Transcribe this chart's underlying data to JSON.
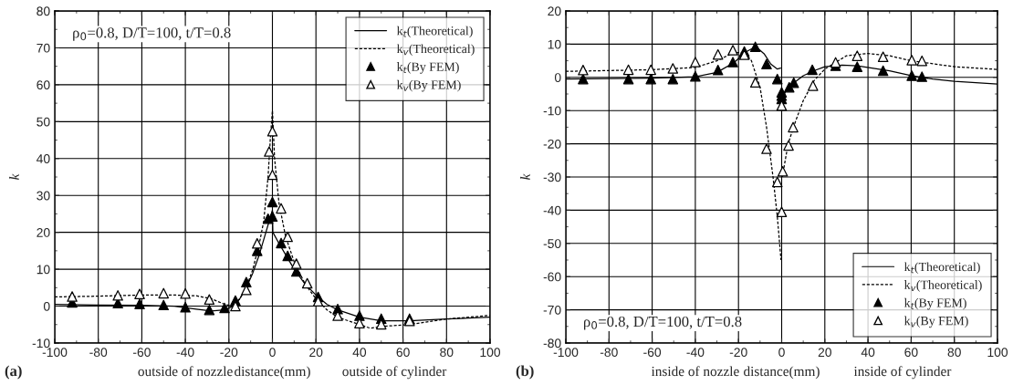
{
  "chart_data": [
    {
      "type": "line",
      "xlabel": "distance(mm)",
      "ylabel": "k",
      "xlim": [
        -100,
        100
      ],
      "ylim": [
        -10,
        80
      ],
      "xticks": [
        -100,
        -80,
        -60,
        -40,
        -20,
        0,
        20,
        40,
        60,
        80,
        100
      ],
      "yticks": [
        -10,
        0,
        10,
        20,
        30,
        40,
        50,
        60,
        70,
        80
      ],
      "grid": true,
      "legend": "top right",
      "annotations": [
        "ρ$_{0}$=0.8, D/T=100, t/T=0.8",
        "(a)",
        "outside of nozzle",
        "outside of cylinder"
      ],
      "series": [
        {
          "name": "k$_{t}$(Theoretical)",
          "line_style": "solid",
          "color": "#000000",
          "x": [
            -100,
            -80,
            -60,
            -45,
            -35,
            -28,
            -22,
            -18,
            -15,
            -12,
            -9,
            -6,
            -3,
            -1,
            0,
            0.2,
            3,
            6,
            10,
            15,
            20,
            25,
            30,
            40,
            50,
            63,
            80,
            100
          ],
          "values": [
            0.5,
            0.3,
            0.2,
            0,
            -0.8,
            -1.3,
            -1.0,
            0,
            2,
            5,
            9,
            14,
            20,
            24,
            26,
            20,
            17,
            14,
            10,
            6,
            3,
            0.5,
            -1,
            -3,
            -4,
            -4,
            -3.5,
            -3
          ]
        },
        {
          "name": "k$_{v}$(Theoretical)",
          "line_style": "dashed",
          "color": "#000000",
          "x": [
            -100,
            -80,
            -60,
            -45,
            -35,
            -28,
            -22,
            -18,
            -15,
            -12,
            -9,
            -6,
            -4,
            -2,
            -1,
            0,
            1,
            3,
            6,
            10,
            15,
            20,
            25,
            30,
            40,
            45,
            50,
            63,
            80,
            100
          ],
          "values": [
            2.5,
            2.7,
            3,
            3,
            2.8,
            2,
            0.5,
            0,
            2,
            5,
            10,
            17,
            23,
            35,
            45,
            53,
            40,
            28,
            19,
            12,
            6,
            2,
            -1,
            -3,
            -5,
            -6,
            -5.5,
            -5,
            -3.5,
            -2.5
          ]
        },
        {
          "name": "k$_{t}$(By FEM)",
          "type": "scatter",
          "marker": "triangle",
          "color": "#000000",
          "x": [
            -92,
            -71,
            -61,
            -50,
            -40,
            -29,
            -22,
            -17,
            -12,
            -7,
            -2,
            0,
            0,
            4,
            7,
            11,
            21,
            30,
            40,
            50,
            63
          ],
          "values": [
            1.0,
            0.8,
            0.6,
            0.3,
            -0.3,
            -1,
            -0.5,
            1.5,
            6.5,
            15,
            23.7,
            24.3,
            28.2,
            17.1,
            13.6,
            9.4,
            2.5,
            -0.8,
            -2.6,
            -3.4,
            -3.4
          ]
        },
        {
          "name": "k$_{v}$(By FEM)",
          "type": "scatter",
          "marker": "triangle",
          "color": "#ffffff",
          "x": [
            -92,
            -71,
            -61,
            -50,
            -40,
            -29,
            -17,
            -12,
            -7,
            -1.5,
            0,
            0,
            4,
            7,
            11,
            16,
            21,
            30,
            40,
            50,
            63
          ],
          "values": [
            2.6,
            2.9,
            3.3,
            3.5,
            3.4,
            1.8,
            0,
            4.4,
            17,
            41.9,
            47.4,
            35.6,
            26.5,
            18.8,
            11.5,
            6.2,
            1.3,
            -2.6,
            -4.6,
            -4.9,
            -4
          ]
        }
      ]
    },
    {
      "type": "line",
      "xlabel": "distance(mm)",
      "ylabel": "k",
      "xlim": [
        -100,
        100
      ],
      "ylim": [
        -80,
        20
      ],
      "xticks": [
        -100,
        -80,
        -60,
        -40,
        -20,
        0,
        20,
        40,
        60,
        80,
        100
      ],
      "yticks": [
        -80,
        -70,
        -60,
        -50,
        -40,
        -30,
        -20,
        -10,
        0,
        10,
        20
      ],
      "grid": true,
      "legend": "bottom right",
      "annotations": [
        "ρ$_{0}$=0.8, D/T=100, t/T=0.8",
        "(b)",
        "inside of nozzle",
        "inside of cylinder"
      ],
      "series": [
        {
          "name": "k$_{t}$(Theoretical)",
          "line_style": "solid",
          "color": "#000000",
          "x": [
            -100,
            -60,
            -40,
            -30,
            -22,
            -17,
            -12,
            -8,
            -5,
            -2,
            -0.5,
            -0.3,
            0,
            2,
            5,
            10,
            15,
            20,
            28,
            35,
            50,
            60,
            70,
            80,
            100
          ],
          "values": [
            -0.5,
            -0.2,
            0.2,
            1.5,
            4.5,
            7.5,
            9.3,
            7,
            4,
            2.5,
            2.8,
            null,
            -6.5,
            -4,
            -2,
            0.5,
            2,
            3.2,
            3.7,
            3.5,
            2,
            0.5,
            -0.5,
            -1.2,
            -2
          ]
        },
        {
          "name": "k$_{v}$(Theoretical)",
          "line_style": "dashed",
          "color": "#000000",
          "x": [
            -100,
            -60,
            -40,
            -30,
            -22,
            -17,
            -14,
            -10,
            -7,
            -4,
            -2,
            -0.3,
            0,
            0.3,
            3,
            6,
            10,
            15,
            20,
            25,
            30,
            40,
            50,
            60,
            80,
            100
          ],
          "values": [
            1.8,
            2.3,
            3,
            5,
            7.5,
            7.5,
            5,
            -3,
            -15,
            -30,
            -42,
            -55,
            null,
            -30,
            -20,
            -14,
            -7,
            -1,
            2.5,
            4.5,
            6.5,
            7.2,
            6.5,
            5,
            3.2,
            2.4
          ]
        },
        {
          "name": "k$_{t}$(By FEM)",
          "type": "scatter",
          "marker": "triangle",
          "color": "#000000",
          "x": [
            -92,
            -71,
            -60.6,
            -50.4,
            -40,
            -29.5,
            -22.6,
            -17.3,
            -12.2,
            -7,
            -2,
            0,
            0,
            0,
            3.5,
            5.6,
            14.2,
            25,
            35,
            47,
            60.3,
            65
          ],
          "values": [
            -0.5,
            -0.5,
            -0.5,
            -0.5,
            0.3,
            2.2,
            4.6,
            7.8,
            9.2,
            4,
            -0.5,
            -4.5,
            -5.5,
            -6.5,
            -3,
            -1.6,
            2.3,
            3.5,
            3.2,
            2,
            0.5,
            0.2
          ]
        },
        {
          "name": "k$_{v}$(By FEM)",
          "type": "scatter",
          "marker": "triangle",
          "color": "#ffffff",
          "x": [
            -92,
            -71,
            -60.6,
            -50.4,
            -40,
            -29.5,
            -22.6,
            -17.3,
            -12.2,
            -7,
            -2,
            0,
            0.5,
            0,
            3.2,
            5.3,
            14.5,
            25,
            35,
            47,
            60.3,
            65
          ],
          "values": [
            2.2,
            2.3,
            2.3,
            2.7,
            4.6,
            6.9,
            8.2,
            6.8,
            -1.5,
            -21.5,
            -31.5,
            -8.5,
            -28.3,
            -40.5,
            -20.5,
            -15,
            -2.5,
            4.5,
            6.5,
            6.2,
            5.2,
            5
          ]
        }
      ]
    }
  ]
}
